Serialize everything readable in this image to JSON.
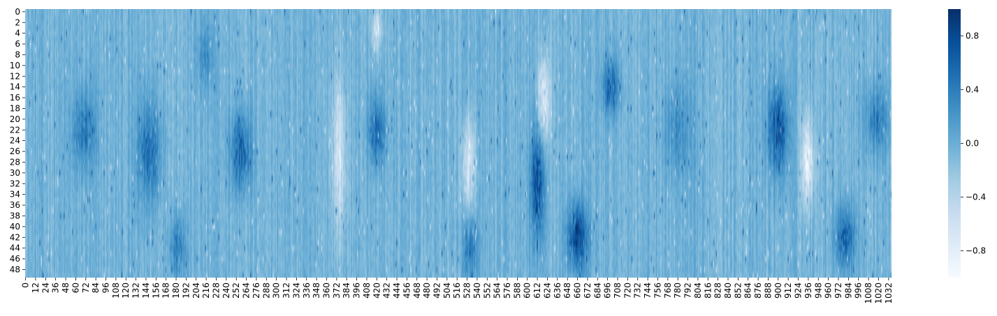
{
  "chart_data": {
    "type": "heatmap",
    "title": "",
    "xlabel": "",
    "ylabel": "",
    "n_rows": 50,
    "n_cols": 1036,
    "colormap": "Blues",
    "color_min": "#f7fbff",
    "color_max": "#08306b",
    "vmin": -1.0,
    "vmax": 1.0,
    "x_tick_labels": [
      "0",
      "12",
      "24",
      "36",
      "48",
      "60",
      "72",
      "84",
      "96",
      "108",
      "120",
      "132",
      "144",
      "156",
      "168",
      "180",
      "192",
      "204",
      "216",
      "228",
      "240",
      "252",
      "264",
      "276",
      "288",
      "300",
      "312",
      "324",
      "336",
      "348",
      "360",
      "372",
      "384",
      "396",
      "408",
      "420",
      "432",
      "444",
      "456",
      "468",
      "480",
      "492",
      "504",
      "516",
      "528",
      "540",
      "552",
      "564",
      "576",
      "588",
      "600",
      "612",
      "624",
      "636",
      "648",
      "660",
      "672",
      "684",
      "696",
      "708",
      "720",
      "732",
      "744",
      "756",
      "768",
      "780",
      "792",
      "804",
      "816",
      "828",
      "840",
      "852",
      "864",
      "876",
      "888",
      "900",
      "912",
      "924",
      "936",
      "948",
      "960",
      "972",
      "984",
      "996",
      "1008",
      "1020",
      "1032"
    ],
    "y_tick_labels": [
      "0",
      "2",
      "4",
      "6",
      "8",
      "10",
      "12",
      "14",
      "16",
      "18",
      "20",
      "22",
      "24",
      "26",
      "28",
      "30",
      "32",
      "34",
      "36",
      "38",
      "40",
      "42",
      "44",
      "46",
      "48"
    ],
    "colorbar_ticks": [
      {
        "value": 0.8,
        "label": "0.8"
      },
      {
        "value": 0.4,
        "label": "0.4"
      },
      {
        "value": 0.0,
        "label": "0.0"
      },
      {
        "value": -0.4,
        "label": "−0.4"
      },
      {
        "value": -0.8,
        "label": "−0.8"
      }
    ],
    "features": [
      {
        "col": 70,
        "row": 22,
        "col_width": 14,
        "row_width": 7,
        "value": 0.45
      },
      {
        "col": 148,
        "row": 26,
        "col_width": 14,
        "row_width": 9,
        "value": 0.55
      },
      {
        "col": 182,
        "row": 44,
        "col_width": 10,
        "row_width": 6,
        "value": 0.45
      },
      {
        "col": 258,
        "row": 26,
        "col_width": 12,
        "row_width": 7,
        "value": 0.65
      },
      {
        "col": 215,
        "row": 8,
        "col_width": 10,
        "row_width": 6,
        "value": 0.3
      },
      {
        "col": 375,
        "row": 27,
        "col_width": 8,
        "row_width": 14,
        "value": -0.55
      },
      {
        "col": 420,
        "row": 22,
        "col_width": 10,
        "row_width": 6,
        "value": 0.6
      },
      {
        "col": 420,
        "row": 3,
        "col_width": 6,
        "row_width": 4,
        "value": -0.5
      },
      {
        "col": 530,
        "row": 28,
        "col_width": 8,
        "row_width": 8,
        "value": -0.6
      },
      {
        "col": 532,
        "row": 44,
        "col_width": 8,
        "row_width": 5,
        "value": 0.5
      },
      {
        "col": 612,
        "row": 32,
        "col_width": 8,
        "row_width": 10,
        "value": 0.8
      },
      {
        "col": 620,
        "row": 16,
        "col_width": 7,
        "row_width": 8,
        "value": -0.7
      },
      {
        "col": 660,
        "row": 42,
        "col_width": 12,
        "row_width": 6,
        "value": 0.85
      },
      {
        "col": 700,
        "row": 14,
        "col_width": 10,
        "row_width": 5,
        "value": 0.6
      },
      {
        "col": 780,
        "row": 22,
        "col_width": 16,
        "row_width": 8,
        "value": 0.3
      },
      {
        "col": 900,
        "row": 22,
        "col_width": 12,
        "row_width": 8,
        "value": 0.75
      },
      {
        "col": 935,
        "row": 28,
        "col_width": 7,
        "row_width": 8,
        "value": -0.75
      },
      {
        "col": 980,
        "row": 42,
        "col_width": 12,
        "row_width": 6,
        "value": 0.65
      },
      {
        "col": 1018,
        "row": 20,
        "col_width": 14,
        "row_width": 6,
        "value": 0.45
      }
    ]
  }
}
